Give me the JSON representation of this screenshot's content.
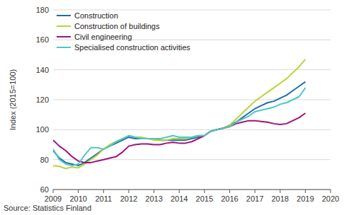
{
  "chart_data": {
    "type": "line",
    "y_label": "Index (2015=100)",
    "source": "Source: Statistics Finland",
    "x": [
      2009,
      2009.25,
      2009.5,
      2009.75,
      2010,
      2010.25,
      2010.5,
      2010.75,
      2011,
      2011.25,
      2011.5,
      2011.75,
      2012,
      2012.25,
      2012.5,
      2012.75,
      2013,
      2013.25,
      2013.5,
      2013.75,
      2014,
      2014.25,
      2014.5,
      2014.75,
      2015,
      2015.25,
      2015.5,
      2015.75,
      2016,
      2016.25,
      2016.5,
      2016.75,
      2017,
      2017.25,
      2017.5,
      2017.75,
      2018,
      2018.25,
      2018.5,
      2018.75,
      2019
    ],
    "series": [
      {
        "name": "Construction",
        "color": "#1f6ea8",
        "values": [
          86,
          81,
          78,
          77,
          76,
          78,
          81,
          84,
          87,
          89,
          91,
          93,
          95,
          94,
          94,
          94,
          94,
          93,
          93,
          93,
          93,
          93,
          94,
          95,
          96,
          99,
          100,
          101,
          103,
          105,
          108,
          111,
          114,
          116,
          118,
          119,
          121,
          123,
          126,
          129,
          132
        ]
      },
      {
        "name": "Construction of buildings",
        "color": "#b6d43a",
        "values": [
          76,
          75.5,
          74,
          75,
          74.5,
          77,
          80,
          83,
          87,
          90,
          92,
          94,
          96,
          95,
          95,
          94,
          93,
          93,
          93,
          94,
          94,
          94,
          95,
          96,
          96,
          99,
          100,
          101,
          103,
          107,
          111,
          115,
          119,
          122,
          125,
          128,
          131,
          134,
          138,
          142,
          147
        ]
      },
      {
        "name": "Civil engineering",
        "color": "#a0127a",
        "values": [
          93,
          89,
          86,
          82,
          79,
          78,
          78,
          79,
          80,
          81,
          82,
          85,
          89,
          90,
          90.5,
          90.5,
          90,
          90,
          91,
          91.5,
          91,
          91,
          92,
          94,
          96,
          99,
          100,
          101,
          102,
          104,
          105,
          106,
          106,
          105.5,
          105,
          104,
          103.5,
          104,
          106,
          108,
          111
        ]
      },
      {
        "name": "Specialised construction activities",
        "color": "#4cc7c5",
        "values": [
          87,
          80,
          77,
          76,
          77,
          83,
          88,
          88,
          87,
          89,
          92,
          94,
          96,
          95,
          94,
          94,
          94,
          94,
          95,
          96,
          95,
          95,
          95,
          96,
          96,
          99,
          100,
          101,
          102,
          105,
          107,
          109,
          112,
          113,
          114,
          115,
          117,
          118,
          120,
          122,
          128
        ]
      }
    ],
    "xlim": [
      2009,
      2020
    ],
    "xticks": [
      2009,
      2010,
      2011,
      2012,
      2013,
      2014,
      2015,
      2016,
      2017,
      2018,
      2019,
      2020
    ],
    "ylim": [
      60,
      180
    ],
    "yticks": [
      60,
      80,
      100,
      120,
      140,
      160,
      180
    ],
    "grid": true,
    "legend": "top-left"
  }
}
